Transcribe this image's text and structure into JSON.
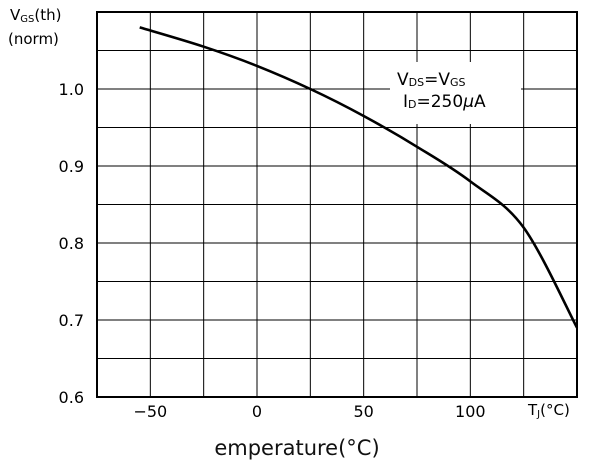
{
  "chart_data": {
    "type": "line",
    "ylabel": "VGS(th)",
    "ylabel_parts": {
      "main": "V",
      "sub": "GS",
      "rest": "(th)"
    },
    "ylabel_line2": "(norm)",
    "xlabel": "TJ(°C)",
    "xlabel_parts": {
      "main": "T",
      "sub": "J",
      "rest": "(°C)"
    },
    "caption": "emperature(°C)",
    "xlim": [
      -75,
      150
    ],
    "ylim": [
      0.6,
      1.1
    ],
    "x_ticks": [
      -50,
      0,
      50,
      100
    ],
    "x_tick_labels": [
      "−50",
      "0",
      "50",
      "100"
    ],
    "y_ticks": [
      0.6,
      0.7,
      0.8,
      0.9,
      1.0
    ],
    "y_tick_labels": [
      "0.6",
      "0.7",
      "0.8",
      "0.9",
      "1.0"
    ],
    "grid": true,
    "annotation": {
      "line1": {
        "main": "V",
        "sub": "DS",
        "eq": "=V",
        "sub2": "GS"
      },
      "line2": {
        "main": "I",
        "sub": "D",
        "rest": "=250",
        "mu": "μ",
        "unit": "A"
      }
    },
    "series": [
      {
        "x": [
          -55,
          -25,
          0,
          25,
          50,
          75,
          100,
          125,
          150
        ],
        "y": [
          1.08,
          1.055,
          1.03,
          1.0,
          0.965,
          0.925,
          0.88,
          0.82,
          0.69
        ]
      }
    ]
  }
}
